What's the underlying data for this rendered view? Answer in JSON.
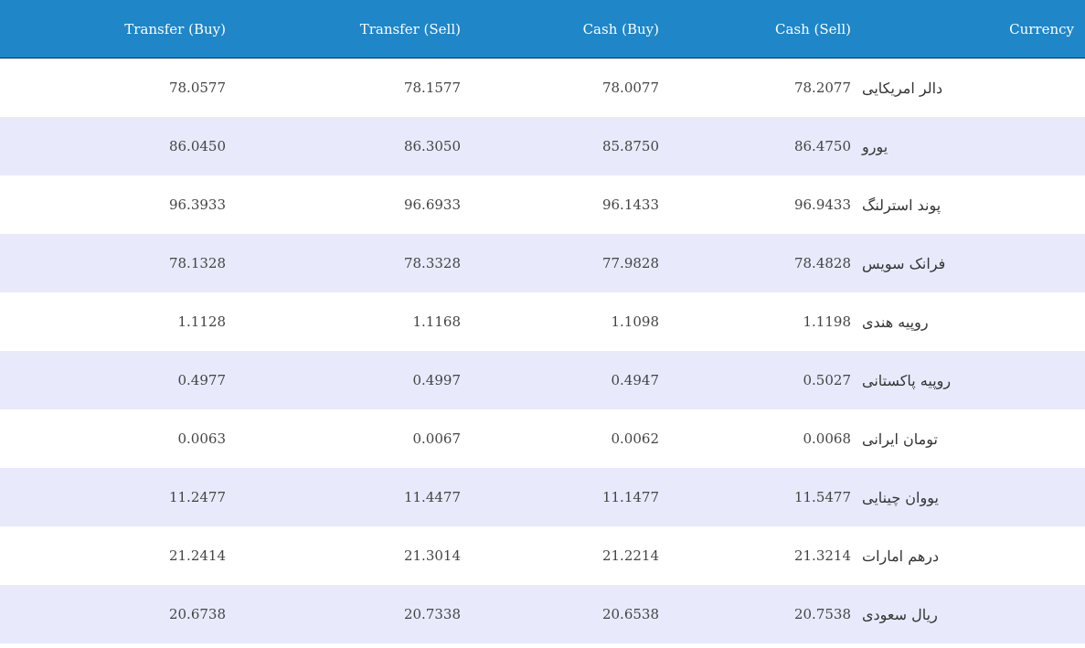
{
  "table": {
    "headers": {
      "transfer_buy": "Transfer (Buy)",
      "transfer_sell": "Transfer (Sell)",
      "cash_buy": "Cash (Buy)",
      "cash_sell": "Cash (Sell)",
      "currency": "Currency"
    },
    "rows": [
      {
        "transfer_buy": "78.0577",
        "transfer_sell": "78.1577",
        "cash_buy": "78.0077",
        "cash_sell": "78.2077",
        "currency": "دالر امریکایی"
      },
      {
        "transfer_buy": "86.0450",
        "transfer_sell": "86.3050",
        "cash_buy": "85.8750",
        "cash_sell": "86.4750",
        "currency": "یورو"
      },
      {
        "transfer_buy": "96.3933",
        "transfer_sell": "96.6933",
        "cash_buy": "96.1433",
        "cash_sell": "96.9433",
        "currency": "پوند استرلنگ"
      },
      {
        "transfer_buy": "78.1328",
        "transfer_sell": "78.3328",
        "cash_buy": "77.9828",
        "cash_sell": "78.4828",
        "currency": "فرانک سویس"
      },
      {
        "transfer_buy": "1.1128",
        "transfer_sell": "1.1168",
        "cash_buy": "1.1098",
        "cash_sell": "1.1198",
        "currency": "روپیه هندی"
      },
      {
        "transfer_buy": "0.4977",
        "transfer_sell": "0.4997",
        "cash_buy": "0.4947",
        "cash_sell": "0.5027",
        "currency": "روپیه پاکستانی"
      },
      {
        "transfer_buy": "0.0063",
        "transfer_sell": "0.0067",
        "cash_buy": "0.0062",
        "cash_sell": "0.0068",
        "currency": "تومان ایرانی"
      },
      {
        "transfer_buy": "11.2477",
        "transfer_sell": "11.4477",
        "cash_buy": "11.1477",
        "cash_sell": "11.5477",
        "currency": "یووان چینایی"
      },
      {
        "transfer_buy": "21.2414",
        "transfer_sell": "21.3014",
        "cash_buy": "21.2214",
        "cash_sell": "21.3214",
        "currency": "درهم امارات"
      },
      {
        "transfer_buy": "20.6738",
        "transfer_sell": "20.7338",
        "cash_buy": "20.6538",
        "cash_sell": "20.7538",
        "currency": "ریال سعودی"
      }
    ]
  },
  "colors": {
    "header_bg": "#1f86c8",
    "header_text": "#ffffff",
    "row_alt_bg": "#e8eafb",
    "row_plain_bg": "#ffffff"
  }
}
